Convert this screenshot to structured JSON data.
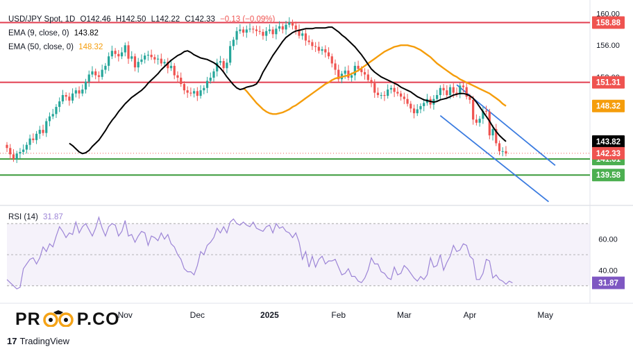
{
  "header": {
    "symbol": "USD/JPY Spot, 1D",
    "ohlc": [
      {
        "key": "O",
        "value": "142.46"
      },
      {
        "key": "H",
        "value": "142.50"
      },
      {
        "key": "L",
        "value": "142.22"
      },
      {
        "key": "C",
        "value": "142.33"
      }
    ],
    "change": "−0.13 (−0.09%)",
    "ema9_label": "EMA (9, close, 0)",
    "ema9_value": "143.82",
    "ema50_label": "EMA (50, close, 0)",
    "ema50_value": "148.32",
    "rsi_label": "RSI (14)",
    "rsi_value": "31.87"
  },
  "logo": {
    "text_left": "PR",
    "text_right": "P.CO"
  },
  "footer": {
    "brand_mark": "17",
    "brand": "TradingView"
  },
  "colors": {
    "up": "#26a69a",
    "down": "#ef5350",
    "ema9": "#000000",
    "ema50": "#f59d0b",
    "resistance": "#e23d4f",
    "support": "#3b9a3b",
    "channel": "#3a7be0",
    "rsi": "#9c84d6",
    "rsi_band": "#ede7f6"
  },
  "chart_data": {
    "type": "candlestick",
    "symbol": "USD/JPY",
    "timeframe": "1D",
    "price_axis": {
      "ticks": [
        160.0,
        156.0,
        152.0
      ],
      "tick_labels": [
        "160.00",
        "156.00",
        "152.00"
      ],
      "ylim": [
        136.0,
        160.5
      ]
    },
    "time_axis": {
      "labels": [
        "Nov",
        "Dec",
        "2025",
        "Feb",
        "Mar",
        "Apr",
        "May"
      ],
      "label_bar_index": [
        36,
        58,
        80,
        101,
        121,
        141,
        164
      ]
    },
    "horizontal_levels": [
      {
        "value": 158.88,
        "label": "158.88",
        "kind": "resistance"
      },
      {
        "value": 151.31,
        "label": "151.31",
        "kind": "resistance"
      },
      {
        "value": 141.61,
        "label": "141.61",
        "kind": "support"
      },
      {
        "value": 139.58,
        "label": "139.58",
        "kind": "support"
      }
    ],
    "price_tags": [
      {
        "value": 148.32,
        "label": "148.32",
        "kind": "ema50"
      },
      {
        "value": 143.82,
        "label": "143.82",
        "kind": "ema9"
      },
      {
        "value": 142.33,
        "label": "142.33",
        "kind": "last"
      }
    ],
    "channel": {
      "upper": [
        {
          "bar": 137,
          "price": 151.0
        },
        {
          "bar": 167,
          "price": 140.8
        }
      ],
      "lower": [
        {
          "bar": 132,
          "price": 147.1
        },
        {
          "bar": 165,
          "price": 136.2
        }
      ]
    },
    "closes": [
      143.0,
      142.2,
      141.6,
      142.3,
      142.5,
      142.8,
      143.4,
      144.2,
      144.0,
      144.8,
      145.3,
      144.9,
      146.4,
      147.0,
      147.3,
      148.2,
      148.9,
      149.7,
      149.5,
      149.0,
      149.9,
      150.3,
      149.9,
      150.4,
      151.4,
      152.3,
      152.7,
      152.2,
      152.0,
      152.9,
      153.4,
      154.6,
      155.3,
      154.9,
      154.6,
      155.1,
      156.0,
      154.3,
      154.6,
      153.2,
      153.9,
      154.2,
      154.7,
      154.8,
      154.5,
      154.2,
      154.3,
      153.7,
      153.9,
      153.1,
      153.4,
      152.2,
      151.9,
      151.1,
      150.3,
      150.0,
      149.9,
      150.2,
      149.6,
      150.3,
      150.6,
      151.5,
      151.9,
      152.7,
      153.8,
      154.0,
      153.1,
      153.8,
      155.9,
      156.7,
      157.8,
      158.0,
      157.6,
      158.0,
      158.1,
      158.0,
      157.8,
      157.7,
      157.2,
      157.8,
      158.0,
      157.4,
      158.1,
      158.4,
      158.0,
      158.6,
      158.9,
      158.5,
      158.0,
      157.2,
      157.5,
      156.6,
      156.4,
      155.9,
      155.8,
      155.3,
      155.5,
      155.1,
      154.6,
      153.7,
      152.9,
      151.7,
      152.4,
      152.8,
      151.9,
      152.2,
      153.4,
      153.0,
      152.6,
      152.3,
      151.6,
      151.2,
      150.0,
      149.7,
      149.7,
      149.6,
      150.4,
      150.6,
      150.1,
      149.9,
      149.5,
      149.2,
      148.6,
      148.0,
      147.4,
      147.9,
      148.3,
      148.7,
      149.2,
      148.5,
      149.2,
      149.7,
      150.6,
      150.3,
      149.7,
      150.7,
      150.0,
      149.8,
      150.9,
      150.7,
      149.5,
      149.1,
      146.6,
      146.2,
      146.7,
      147.7,
      147.6,
      144.6,
      145.4,
      143.6,
      142.6,
      142.6,
      142.3
    ],
    "ema9": [
      143.6,
      143.3,
      142.9,
      142.5,
      142.3,
      142.4,
      142.7,
      143.2,
      143.6,
      144.0,
      144.6,
      145.2,
      145.9,
      146.5,
      147.0,
      147.6,
      148.1,
      148.6,
      149.0,
      149.4,
      149.7,
      150.0,
      150.3,
      150.7,
      151.2,
      151.6,
      152.0,
      152.4,
      152.9,
      153.3,
      153.7,
      154.1,
      154.4,
      154.7,
      154.9,
      155.2,
      155.3,
      155.1,
      154.8,
      154.6,
      154.4,
      154.3,
      154.2,
      154.0,
      153.8,
      153.5,
      153.1,
      152.6,
      152.0,
      151.5,
      151.0,
      150.6,
      150.4,
      150.5,
      150.7,
      150.8,
      150.9,
      151.1,
      151.7,
      152.6,
      153.3,
      154.0,
      154.7,
      155.3,
      155.9,
      156.5,
      157.0,
      157.3,
      157.6,
      157.8,
      157.9,
      158.0,
      158.1,
      158.1,
      158.1,
      158.2,
      158.2,
      158.2,
      158.2,
      158.3,
      158.3,
      158.0,
      157.7,
      157.3,
      157.0,
      156.6,
      156.2,
      155.8,
      155.3,
      154.8,
      154.2,
      153.6,
      153.0,
      152.6,
      152.3,
      152.0,
      151.8,
      151.6,
      151.4,
      151.2,
      151.0,
      150.7,
      150.5,
      150.3,
      150.1,
      149.8,
      149.5,
      149.3,
      149.1,
      149.0,
      148.9,
      148.8,
      148.9,
      149.1,
      149.2,
      149.3,
      149.5,
      149.7,
      149.8,
      149.9,
      149.9,
      149.8,
      149.6,
      149.3,
      148.8,
      148.2,
      147.6,
      147.0,
      146.4,
      145.7,
      145.1,
      144.6,
      144.2,
      143.82
    ],
    "ema50": [
      150.6,
      150.2,
      149.7,
      149.2,
      148.7,
      148.3,
      147.9,
      147.6,
      147.4,
      147.3,
      147.3,
      147.4,
      147.5,
      147.7,
      147.9,
      148.2,
      148.4,
      148.7,
      149.0,
      149.3,
      149.6,
      149.9,
      150.2,
      150.5,
      150.8,
      151.1,
      151.3,
      151.6,
      151.8,
      151.9,
      152.0,
      152.1,
      152.2,
      152.4,
      152.6,
      152.8,
      153.1,
      153.4,
      153.7,
      154.0,
      154.3,
      154.6,
      154.9,
      155.2,
      155.4,
      155.6,
      155.8,
      155.9,
      156.0,
      156.0,
      156.0,
      155.9,
      155.8,
      155.6,
      155.4,
      155.1,
      154.8,
      154.5,
      154.1,
      153.7,
      153.4,
      153.1,
      152.8,
      152.5,
      152.2,
      152.0,
      151.7,
      151.5,
      151.3,
      151.1,
      150.9,
      150.7,
      150.5,
      150.3,
      150.1,
      149.9,
      149.6,
      149.3,
      149.0,
      148.6,
      148.32
    ],
    "rsi": {
      "ylim": [
        25,
        75
      ],
      "ticks": [
        60.0,
        40.0
      ],
      "tick_labels": [
        "60.00",
        "40.00"
      ],
      "band": [
        30,
        70
      ],
      "last_label": "31.87",
      "values": [
        34,
        32,
        30,
        28,
        29,
        41,
        44,
        47,
        48,
        44,
        48,
        55,
        52,
        57,
        55,
        62,
        68,
        65,
        61,
        64,
        63,
        71,
        64,
        68,
        70,
        66,
        62,
        67,
        74,
        67,
        62,
        68,
        70,
        69,
        62,
        65,
        72,
        62,
        63,
        58,
        62,
        65,
        64,
        56,
        62,
        61,
        59,
        64,
        60,
        63,
        57,
        55,
        50,
        47,
        41,
        39,
        39,
        37,
        43,
        52,
        50,
        56,
        58,
        61,
        67,
        64,
        68,
        64,
        71,
        73,
        70,
        69,
        71,
        69,
        68,
        71,
        67,
        66,
        65,
        68,
        69,
        64,
        70,
        67,
        68,
        65,
        64,
        61,
        64,
        58,
        47,
        52,
        42,
        49,
        42,
        47,
        49,
        44,
        46,
        46,
        47,
        42,
        37,
        38,
        41,
        36,
        36,
        33,
        32,
        35,
        40,
        48,
        44,
        44,
        39,
        38,
        35,
        34,
        42,
        37,
        38,
        43,
        41,
        38,
        35,
        33,
        36,
        34,
        37,
        48,
        42,
        43,
        50,
        40,
        45,
        49,
        56,
        52,
        53,
        57,
        56,
        49,
        47,
        34,
        34,
        38,
        47,
        46,
        35,
        37,
        34,
        33,
        31,
        33,
        31.87
      ]
    }
  }
}
